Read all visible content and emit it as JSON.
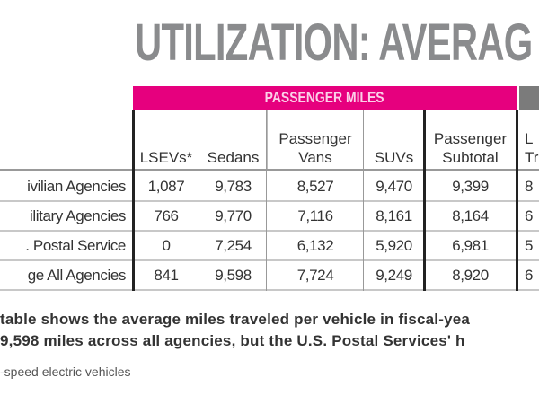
{
  "title": "UTILIZATION: AVERAG",
  "group_header": "PASSENGER MILES",
  "columns": [
    {
      "l1": "",
      "l2": "LSEVs*"
    },
    {
      "l1": "",
      "l2": "Sedans"
    },
    {
      "l1": "Passenger",
      "l2": "Vans"
    },
    {
      "l1": "",
      "l2": "SUVs"
    },
    {
      "l1": "Passenger",
      "l2": "Subtotal"
    },
    {
      "l1": "L",
      "l2": "Tr"
    }
  ],
  "rows": [
    {
      "label": "ivilian Agencies",
      "values": [
        "1,087",
        "9,783",
        "8,527",
        "9,470",
        "9,399",
        "8"
      ]
    },
    {
      "label": "ilitary Agencies",
      "values": [
        "766",
        "9,770",
        "7,116",
        "8,161",
        "8,164",
        "6"
      ]
    },
    {
      "label": ". Postal Service",
      "values": [
        "0",
        "7,254",
        "6,132",
        "5,920",
        "6,981",
        "5"
      ]
    },
    {
      "label": "ge All Agencies",
      "values": [
        "841",
        "9,598",
        "7,724",
        "9,249",
        "8,920",
        "6"
      ]
    }
  ],
  "paragraph": {
    "line1": "table shows the average miles traveled per vehicle in fiscal-yea",
    "line2": "9,598 miles across all agencies, but the U.S. Postal Services' h"
  },
  "footnote": "-speed electric vehicles",
  "colors": {
    "accent": "#e6007e",
    "title": "#8a8b8d"
  }
}
